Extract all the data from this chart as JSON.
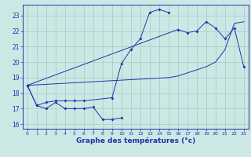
{
  "title": "Graphe des températures (°c)",
  "background_color": "#cce8e4",
  "grid_color": "#aacfcc",
  "line_color": "#2233aa",
  "xlim": [
    -0.5,
    23.5
  ],
  "ylim": [
    15.7,
    23.7
  ],
  "xticks": [
    0,
    1,
    2,
    3,
    4,
    5,
    6,
    7,
    8,
    9,
    10,
    11,
    12,
    13,
    14,
    15,
    16,
    17,
    18,
    19,
    20,
    21,
    22,
    23
  ],
  "yticks": [
    16,
    17,
    18,
    19,
    20,
    21,
    22,
    23
  ],
  "series": [
    {
      "x": [
        0,
        1,
        2,
        3,
        4,
        5,
        6,
        7,
        8,
        9,
        10
      ],
      "y": [
        18.5,
        17.2,
        17.0,
        17.4,
        17.0,
        17.0,
        17.0,
        17.1,
        16.3,
        16.3,
        16.4
      ],
      "markers": true
    },
    {
      "x": [
        0,
        1,
        2,
        3,
        4,
        5,
        6,
        9,
        10,
        11,
        12,
        13,
        14,
        15
      ],
      "y": [
        18.5,
        17.2,
        17.4,
        17.5,
        17.5,
        17.5,
        17.5,
        17.7,
        19.9,
        20.8,
        21.5,
        23.2,
        23.4,
        23.2
      ],
      "markers": true
    },
    {
      "x": [
        0,
        16,
        17,
        18,
        19,
        20,
        21,
        22,
        23
      ],
      "y": [
        18.5,
        22.1,
        21.9,
        22.0,
        22.6,
        22.2,
        21.5,
        22.2,
        19.7
      ],
      "markers": true
    },
    {
      "x": [
        0,
        15,
        16,
        17,
        18,
        19,
        20,
        21,
        22,
        23
      ],
      "y": [
        18.5,
        19.0,
        19.1,
        19.3,
        19.5,
        19.7,
        20.0,
        20.8,
        22.5,
        22.6
      ],
      "markers": false
    }
  ]
}
